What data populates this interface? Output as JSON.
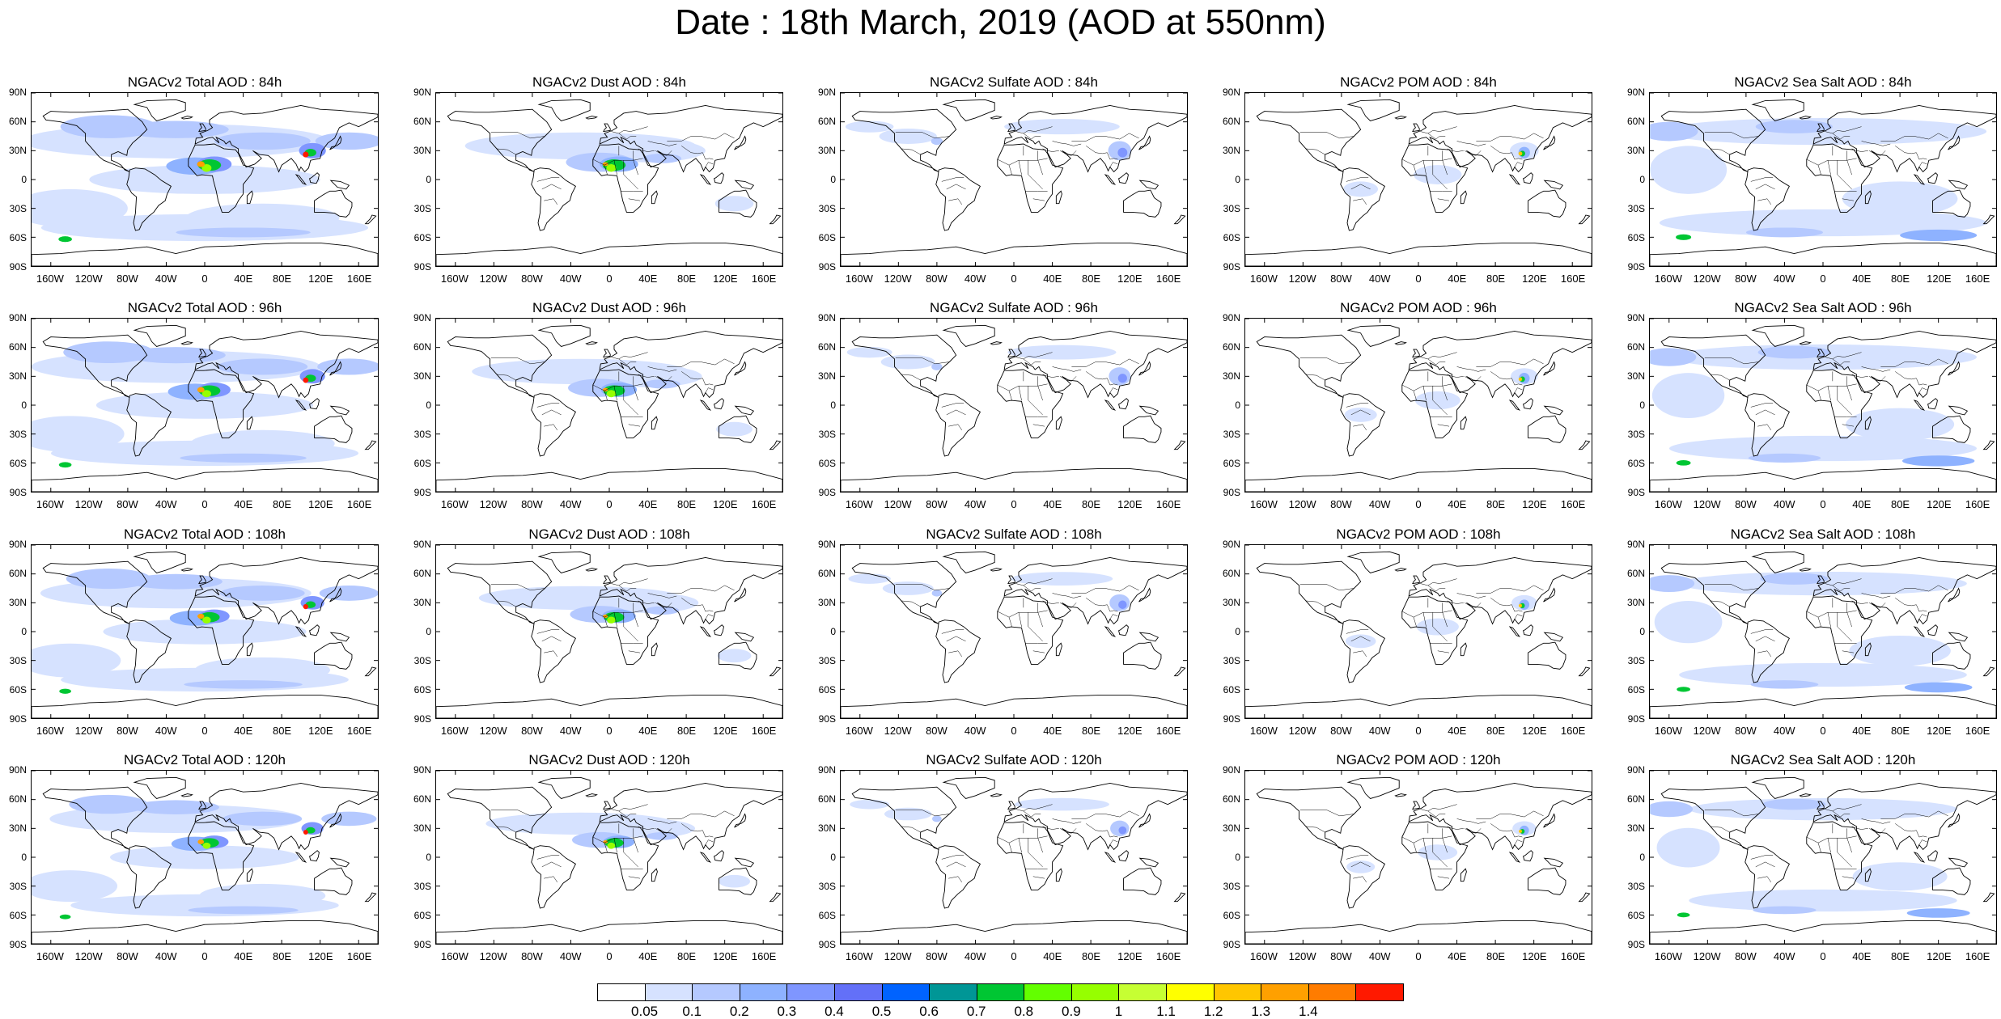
{
  "title": "Date : 18th March, 2019 (AOD at 550nm)",
  "panels": [
    [
      "NGACv2 Total AOD : 84h",
      "NGACv2 Dust AOD : 84h",
      "NGACv2 Sulfate AOD : 84h",
      "NGACv2 POM AOD : 84h",
      "NGACv2 Sea Salt AOD : 84h"
    ],
    [
      "NGACv2 Total AOD : 96h",
      "NGACv2 Dust AOD : 96h",
      "NGACv2 Sulfate AOD : 96h",
      "NGACv2 POM AOD : 96h",
      "NGACv2 Sea Salt AOD : 96h"
    ],
    [
      "NGACv2 Total AOD : 108h",
      "NGACv2 Dust AOD : 108h",
      "NGACv2 Sulfate AOD : 108h",
      "NGACv2 POM AOD : 108h",
      "NGACv2 Sea Salt AOD : 108h"
    ],
    [
      "NGACv2 Total AOD : 120h",
      "NGACv2 Dust AOD : 120h",
      "NGACv2 Sulfate AOD : 120h",
      "NGACv2 POM AOD : 120h",
      "NGACv2 Sea Salt  AOD : 120h"
    ]
  ],
  "lat_ticks": [
    "90N",
    "60N",
    "30N",
    "0",
    "30S",
    "60S",
    "90S"
  ],
  "lon_ticks": [
    "160W",
    "120W",
    "80W",
    "40W",
    "0",
    "40E",
    "80E",
    "120E",
    "160E"
  ],
  "colorbar": {
    "labels": [
      "0.05",
      "0.1",
      "0.2",
      "0.3",
      "0.4",
      "0.5",
      "0.6",
      "0.7",
      "0.8",
      "0.9",
      "1",
      "1.1",
      "1.2",
      "1.3",
      "1.4"
    ],
    "colors": [
      "#ffffff",
      "#d6e2ff",
      "#b5c9ff",
      "#8eb2ff",
      "#7f96ff",
      "#6370f8",
      "#0063ff",
      "#009696",
      "#00c633",
      "#63ff00",
      "#96ff00",
      "#c6ff33",
      "#ffff00",
      "#ffc600",
      "#ffa000",
      "#ff7c00",
      "#ff1900"
    ]
  }
}
